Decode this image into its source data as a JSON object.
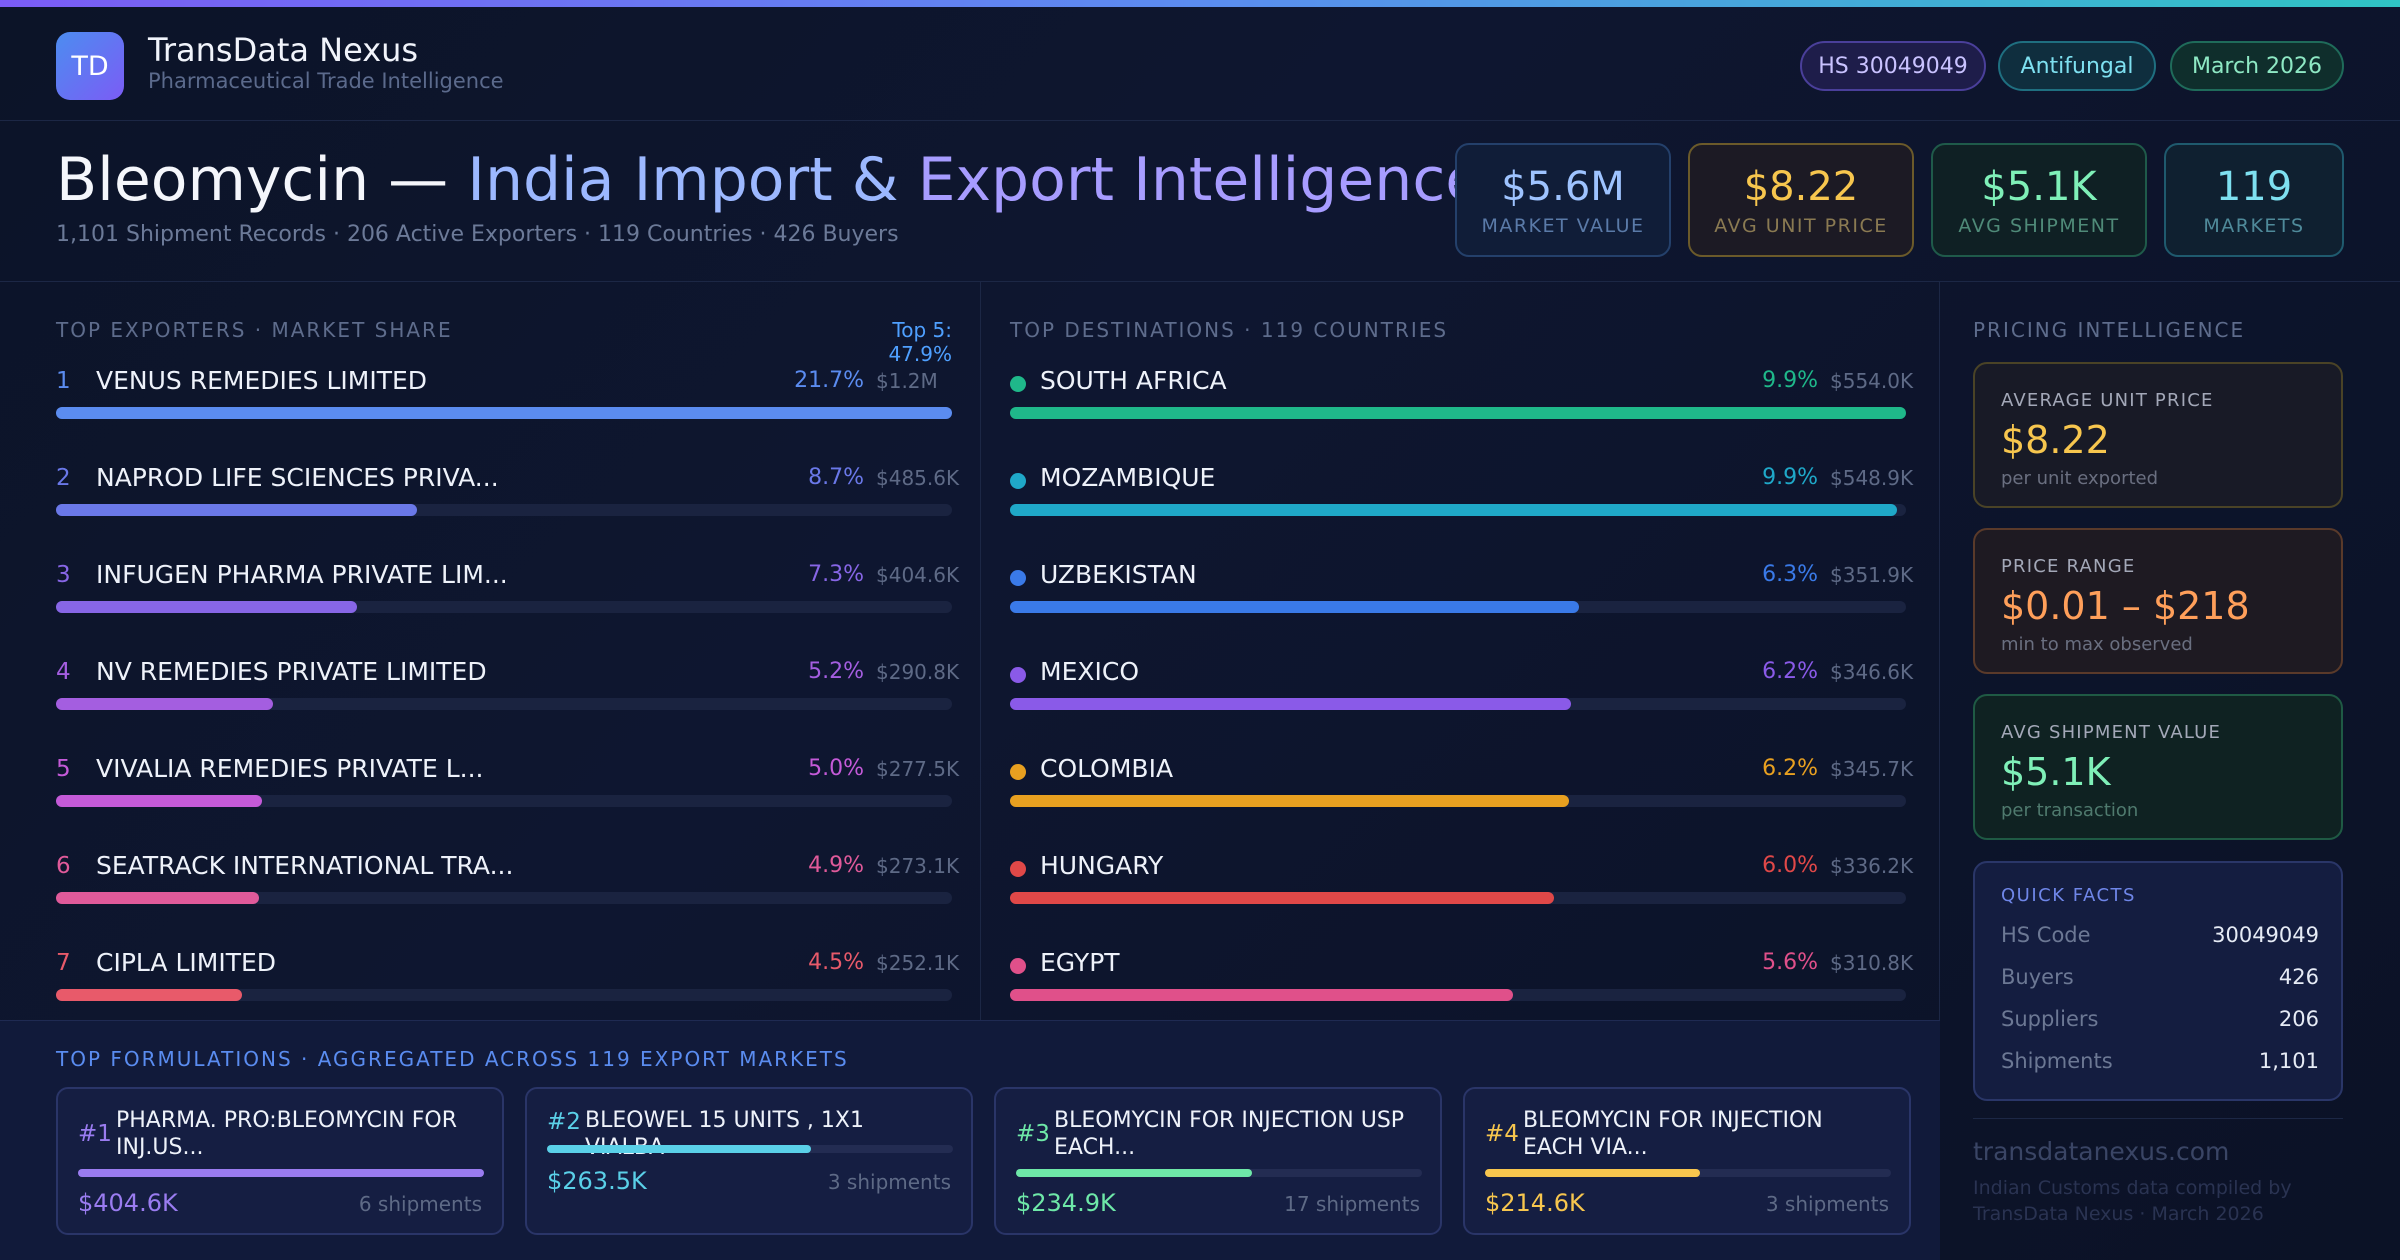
{
  "brand": {
    "logo_text": "TD",
    "name": "TransData Nexus",
    "tagline": "Pharmaceutical Trade Intelligence"
  },
  "header_pills": {
    "hs_code": "HS 30049049",
    "category": "Antifungal",
    "date": "March 2026"
  },
  "title": {
    "drug": "Bleomycin —",
    "part_a": "India Import &",
    "part_b": "Export Intelligence",
    "subtitle": "1,101 Shipment Records · 206 Active Exporters · 119 Countries · 426 Buyers"
  },
  "kpis": [
    {
      "value": "$5.6M",
      "label": "MARKET VALUE"
    },
    {
      "value": "$8.22",
      "label": "AVG UNIT PRICE"
    },
    {
      "value": "$5.1K",
      "label": "AVG SHIPMENT"
    },
    {
      "value": "119",
      "label": "MARKETS"
    }
  ],
  "exporters": {
    "label": "TOP EXPORTERS · MARKET SHARE",
    "top_summary": "Top 5: 47.9%",
    "items": [
      {
        "rank": "1",
        "name": "VENUS REMEDIES LIMITED",
        "pct": "21.7%",
        "amount": "$1.2M",
        "fill": 1.0,
        "color": "#5b8cf0"
      },
      {
        "rank": "2",
        "name": "NAPROD LIFE SCIENCES PRIVA...",
        "pct": "8.7%",
        "amount": "$485.6K",
        "fill": 0.403,
        "color": "#6a78e8"
      },
      {
        "rank": "3",
        "name": "INFUGEN PHARMA PRIVATE LIM...",
        "pct": "7.3%",
        "amount": "$404.6K",
        "fill": 0.336,
        "color": "#8766e6"
      },
      {
        "rank": "4",
        "name": "NV REMEDIES PRIVATE LIMITED",
        "pct": "5.2%",
        "amount": "$290.8K",
        "fill": 0.242,
        "color": "#a45ee0"
      },
      {
        "rank": "5",
        "name": "VIVALIA REMEDIES PRIVATE L...",
        "pct": "5.0%",
        "amount": "$277.5K",
        "fill": 0.23,
        "color": "#c45ad8"
      },
      {
        "rank": "6",
        "name": "SEATRACK INTERNATIONAL TRA...",
        "pct": "4.9%",
        "amount": "$273.1K",
        "fill": 0.227,
        "color": "#e05a9a"
      },
      {
        "rank": "7",
        "name": "CIPLA LIMITED",
        "pct": "4.5%",
        "amount": "$252.1K",
        "fill": 0.208,
        "color": "#e85a6a"
      }
    ]
  },
  "destinations": {
    "label": "TOP DESTINATIONS · 119 COUNTRIES",
    "items": [
      {
        "name": "SOUTH AFRICA",
        "pct": "9.9%",
        "amount": "$554.0K",
        "fill": 1.0,
        "color": "#1fb88a"
      },
      {
        "name": "MOZAMBIQUE",
        "pct": "9.9%",
        "amount": "$548.9K",
        "fill": 0.99,
        "color": "#1fa8c8"
      },
      {
        "name": "UZBEKISTAN",
        "pct": "6.3%",
        "amount": "$351.9K",
        "fill": 0.635,
        "color": "#3a7ae8"
      },
      {
        "name": "MEXICO",
        "pct": "6.2%",
        "amount": "$346.6K",
        "fill": 0.626,
        "color": "#8a5ae8"
      },
      {
        "name": "COLOMBIA",
        "pct": "6.2%",
        "amount": "$345.7K",
        "fill": 0.624,
        "color": "#e8a020"
      },
      {
        "name": "HUNGARY",
        "pct": "6.0%",
        "amount": "$336.2K",
        "fill": 0.607,
        "color": "#e04848"
      },
      {
        "name": "EGYPT",
        "pct": "5.6%",
        "amount": "$310.8K",
        "fill": 0.561,
        "color": "#e0508a"
      }
    ]
  },
  "pricing": {
    "label": "PRICING INTELLIGENCE",
    "avg_unit": {
      "label": "AVERAGE UNIT PRICE",
      "value": "$8.22",
      "sub": "per unit exported"
    },
    "range": {
      "label": "PRICE RANGE",
      "value": "$0.01 – $218",
      "sub": "min to max observed"
    },
    "avg_shipment": {
      "label": "AVG SHIPMENT VALUE",
      "value": "$5.1K",
      "sub": "per transaction"
    }
  },
  "quick_facts": {
    "label": "QUICK FACTS",
    "rows": [
      {
        "key": "HS Code",
        "value": "30049049"
      },
      {
        "key": "Buyers",
        "value": "426"
      },
      {
        "key": "Suppliers",
        "value": "206"
      },
      {
        "key": "Shipments",
        "value": "1,101"
      }
    ]
  },
  "footer": {
    "domain": "transdatanexus.com",
    "credit": "Indian Customs data compiled by TransData Nexus · March 2026"
  },
  "formulations": {
    "label": "TOP FORMULATIONS · AGGREGATED ACROSS 119 EXPORT MARKETS",
    "items": [
      {
        "rank": "#1",
        "name": "PHARMA. PRO:BLEOMYCIN FOR INJ.US...",
        "value": "$404.6K",
        "shipments": "6 shipments",
        "fill": 1.0,
        "color": "#9a7cf0",
        "two_line": true
      },
      {
        "rank": "#2",
        "name": "BLEOWEL 15 UNITS , 1X1 VIALBA",
        "value": "$263.5K",
        "shipments": "3 shipments",
        "fill": 0.651,
        "color": "#5ad0e8",
        "two_line": false
      },
      {
        "rank": "#3",
        "name": "BLEOMYCIN FOR INJECTION USP EACH...",
        "value": "$234.9K",
        "shipments": "17 shipments",
        "fill": 0.581,
        "color": "#6ee8a8",
        "two_line": true
      },
      {
        "rank": "#4",
        "name": "BLEOMYCIN FOR INJECTION EACH VIA...",
        "value": "$214.6K",
        "shipments": "3 shipments",
        "fill": 0.53,
        "color": "#f7c64e",
        "two_line": true
      }
    ]
  }
}
